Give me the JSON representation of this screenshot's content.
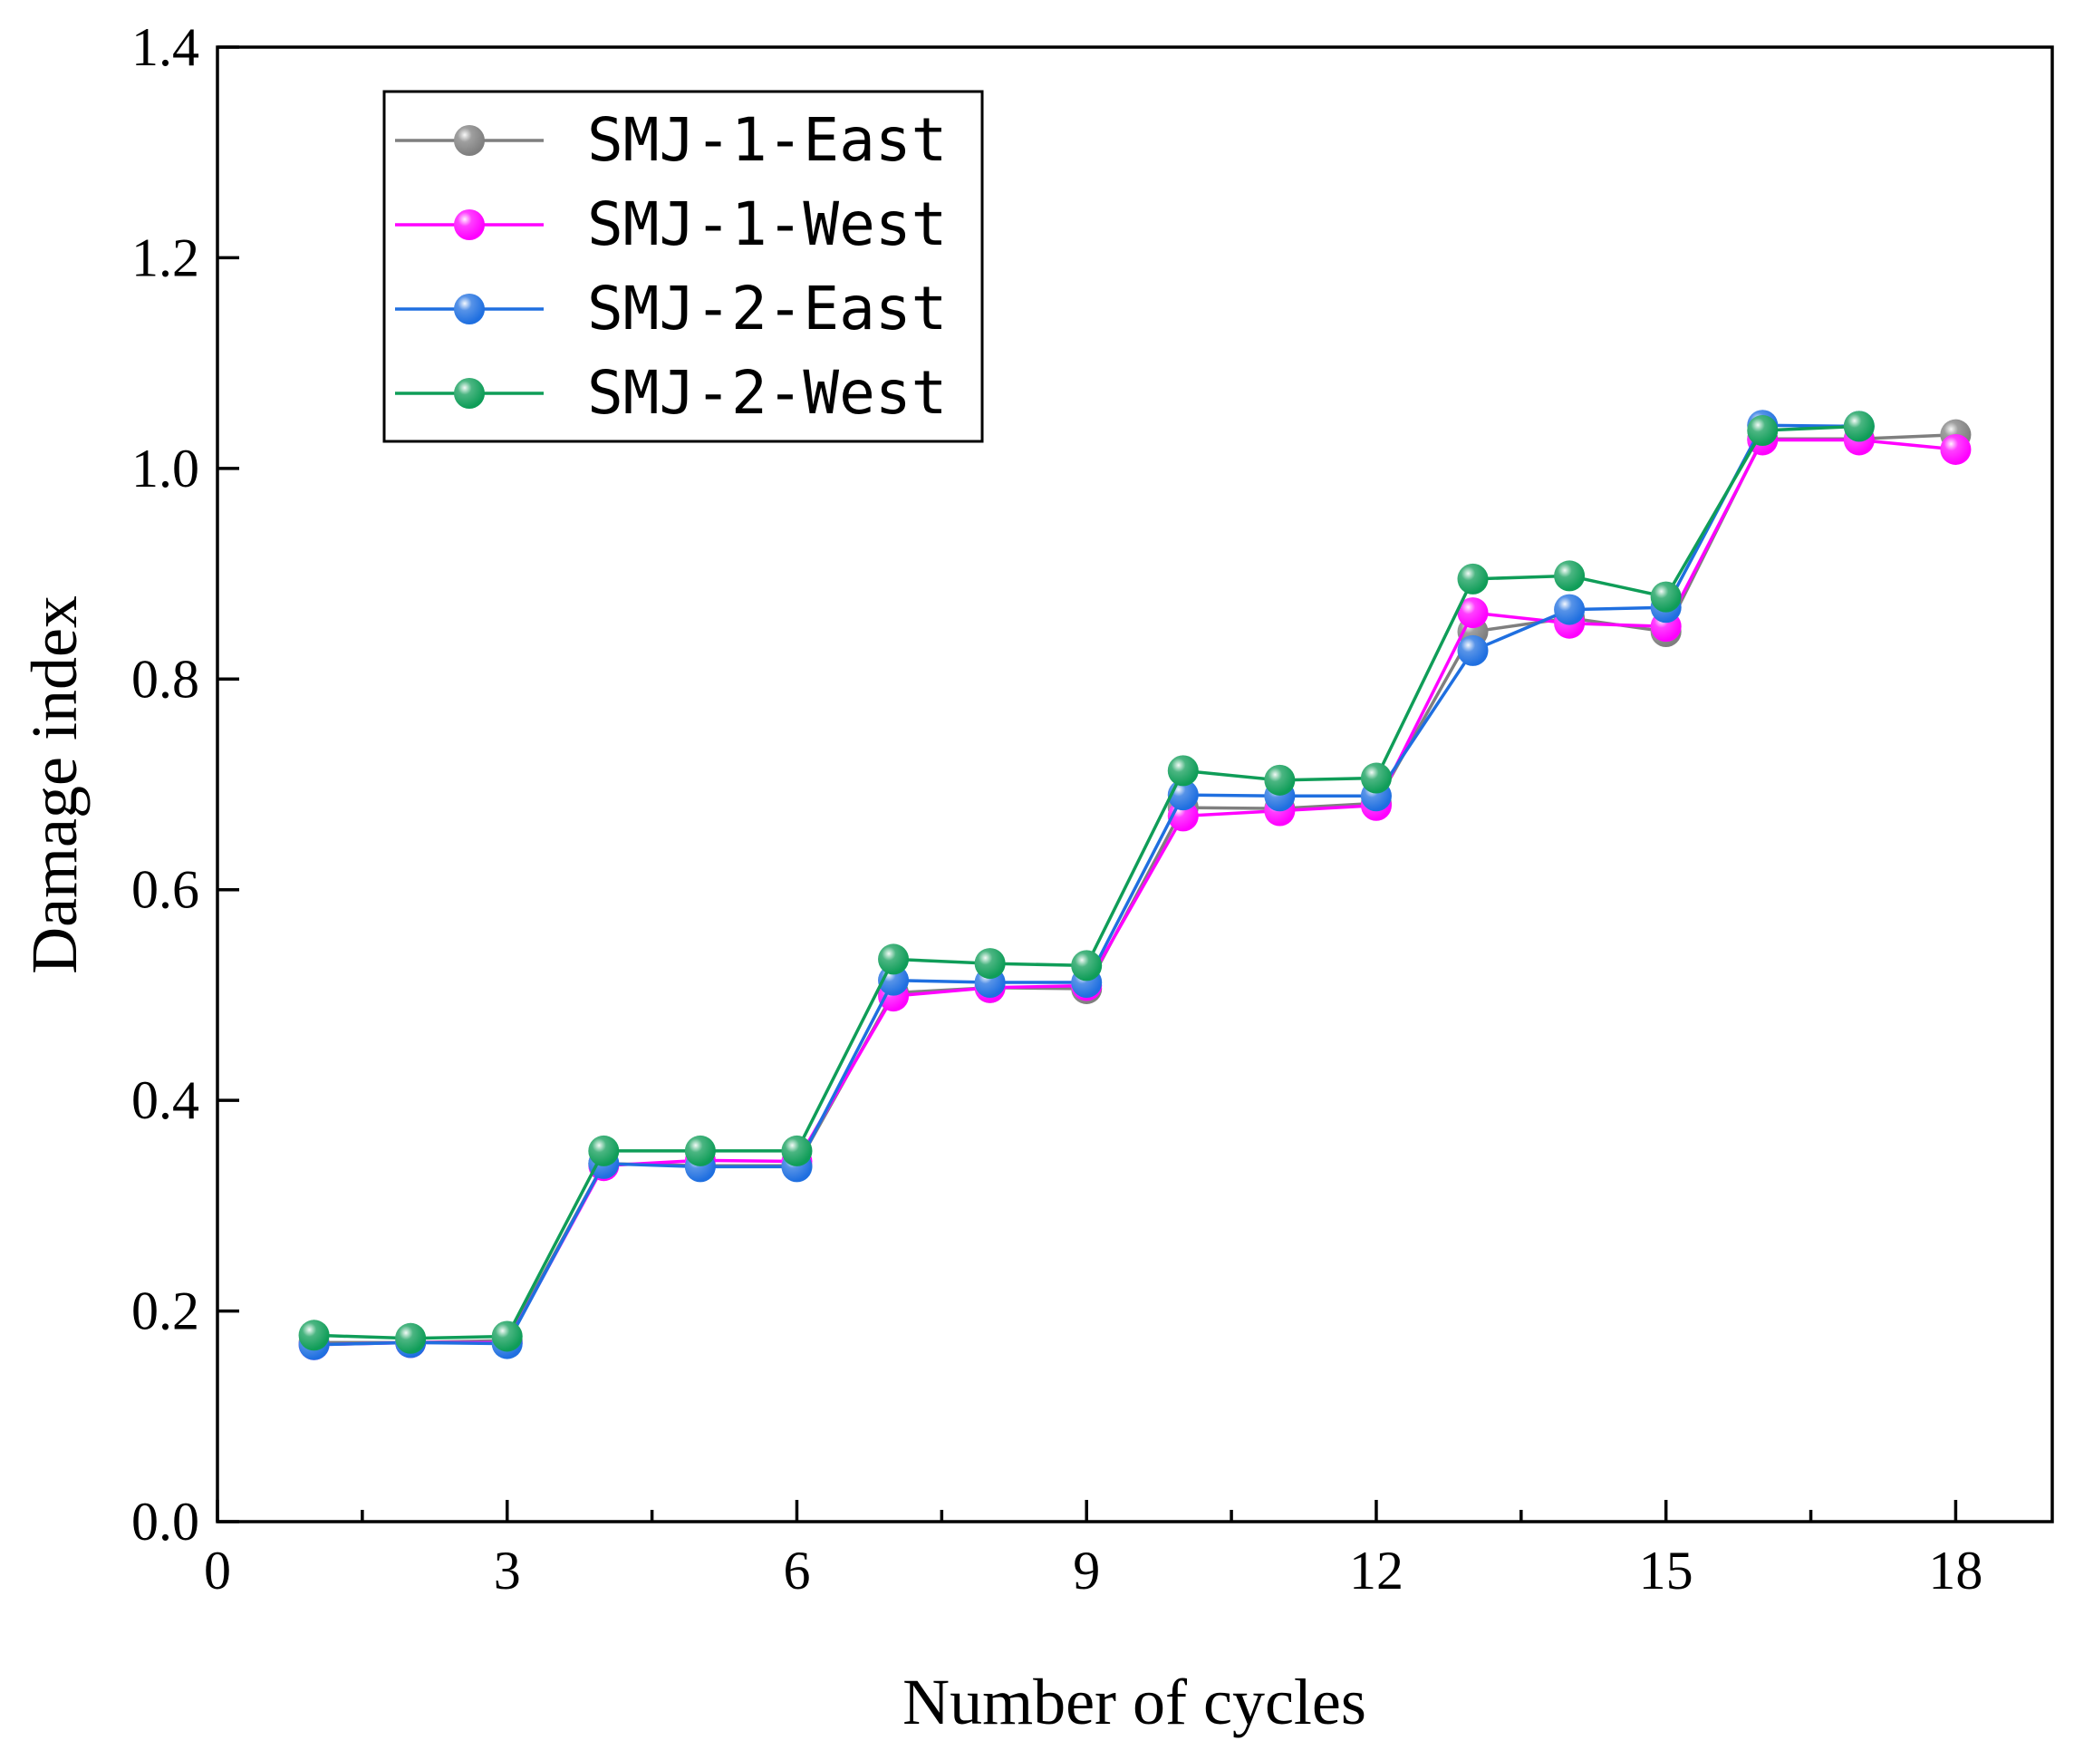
{
  "chart_data": {
    "type": "line",
    "xlabel": "Number of cycles",
    "ylabel": "Damage index",
    "xlim": [
      0,
      19
    ],
    "ylim": [
      0.0,
      1.4
    ],
    "x_ticks": [
      0,
      3,
      6,
      9,
      12,
      15,
      18
    ],
    "x_tick_labels": [
      "0",
      "3",
      "6",
      "9",
      "12",
      "15",
      "18"
    ],
    "x_minor_ticks": [
      1.5,
      4.5,
      7.5,
      10.5,
      13.5,
      16.5
    ],
    "y_ticks": [
      0.0,
      0.2,
      0.4,
      0.6,
      0.8,
      1.0,
      1.2,
      1.4
    ],
    "y_tick_labels": [
      "0.0",
      "0.2",
      "0.4",
      "0.6",
      "0.8",
      "1.0",
      "1.2",
      "1.4"
    ],
    "legend_position": "top-left",
    "x": [
      1,
      2,
      3,
      4,
      5,
      6,
      7,
      8,
      9,
      10,
      11,
      12,
      13,
      14,
      15,
      16,
      17,
      18
    ],
    "series": [
      {
        "name": "SMJ-1-East",
        "color": "#7f7f7f",
        "values": [
          0.17,
          0.17,
          0.172,
          0.34,
          0.338,
          0.338,
          0.502,
          0.507,
          0.506,
          0.678,
          0.677,
          0.682,
          0.845,
          0.858,
          0.845,
          1.028,
          1.028,
          1.032
        ]
      },
      {
        "name": "SMJ-1-West",
        "color": "#ff00ff",
        "values": [
          0.168,
          0.17,
          0.17,
          0.338,
          0.343,
          0.342,
          0.499,
          0.507,
          0.509,
          0.67,
          0.675,
          0.68,
          0.863,
          0.853,
          0.85,
          1.027,
          1.027,
          1.018
        ]
      },
      {
        "name": "SMJ-2-East",
        "color": "#1f6fe0",
        "values": [
          0.168,
          0.17,
          0.169,
          0.34,
          0.337,
          0.337,
          0.514,
          0.512,
          0.512,
          0.69,
          0.689,
          0.689,
          0.827,
          0.866,
          0.868,
          1.041,
          1.04,
          null
        ]
      },
      {
        "name": "SMJ-2-West",
        "color": "#0f9d58",
        "values": [
          0.177,
          0.174,
          0.176,
          0.352,
          0.352,
          0.352,
          0.534,
          0.53,
          0.528,
          0.713,
          0.704,
          0.706,
          0.895,
          0.898,
          0.878,
          1.036,
          1.04,
          null
        ]
      }
    ]
  }
}
